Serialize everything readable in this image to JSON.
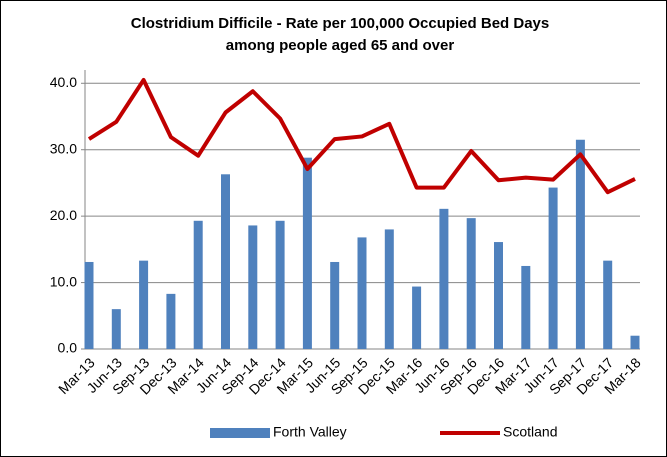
{
  "chart_data": {
    "type": "bar_line",
    "title": [
      "Clostridium Difficile - Rate per 100,000 Occupied Bed Days",
      "among people aged 65 and over"
    ],
    "categories": [
      "Mar-13",
      "Jun-13",
      "Sep-13",
      "Dec-13",
      "Mar-14",
      "Jun-14",
      "Sep-14",
      "Dec-14",
      "Mar-15",
      "Jun-15",
      "Sep-15",
      "Dec-15",
      "Mar-16",
      "Jun-16",
      "Sep-16",
      "Dec-16",
      "Mar-17",
      "Jun-17",
      "Sep-17",
      "Dec-17",
      "Mar-18"
    ],
    "series": [
      {
        "name": "Forth Valley",
        "type": "bar",
        "color": "#4f81bd",
        "values": [
          13.1,
          6.0,
          13.3,
          8.3,
          19.3,
          26.3,
          18.6,
          19.3,
          28.8,
          13.1,
          16.8,
          18.0,
          9.4,
          21.1,
          19.7,
          16.1,
          12.5,
          24.3,
          31.5,
          13.3,
          2.0
        ]
      },
      {
        "name": "Scotland",
        "type": "line",
        "color": "#c00000",
        "values": [
          31.6,
          34.2,
          40.5,
          31.9,
          29.1,
          35.6,
          38.8,
          34.7,
          27.1,
          31.6,
          32.0,
          33.9,
          24.3,
          24.3,
          29.8,
          25.4,
          25.8,
          25.5,
          29.3,
          23.6,
          25.6
        ]
      }
    ],
    "ylim": [
      0,
      42
    ],
    "yticks": [
      {
        "value": 0,
        "label": "0.0"
      },
      {
        "value": 10,
        "label": "10.0"
      },
      {
        "value": 20,
        "label": "20.0"
      },
      {
        "value": 30,
        "label": "30.0"
      },
      {
        "value": 40,
        "label": "40.0"
      }
    ],
    "grid": true,
    "legend": "bottom"
  }
}
